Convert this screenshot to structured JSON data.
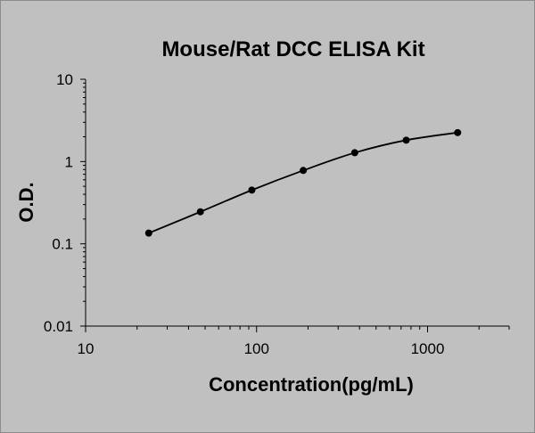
{
  "chart_data": {
    "type": "line",
    "title": "Mouse/Rat DCC  ELISA Kit",
    "xlabel": "Concentration(pg/mL)",
    "ylabel": "O.D.",
    "x_scale": "log",
    "y_scale": "log",
    "xlim": [
      10,
      3000
    ],
    "ylim": [
      0.01,
      10
    ],
    "x_ticks": [
      "10",
      "100",
      "1000"
    ],
    "y_ticks": [
      "10",
      "1",
      "0.1",
      "0.01"
    ],
    "grid": false,
    "legend": "none",
    "series": [
      {
        "x": [
          23.4,
          46.9,
          93.8,
          187.5,
          375,
          750,
          1500
        ],
        "y": [
          0.135,
          0.245,
          0.45,
          0.78,
          1.28,
          1.82,
          2.25
        ],
        "color": "#000000",
        "marker": "circle"
      }
    ]
  },
  "colors": {
    "background": "#c0c0c0",
    "line": "#000000"
  }
}
